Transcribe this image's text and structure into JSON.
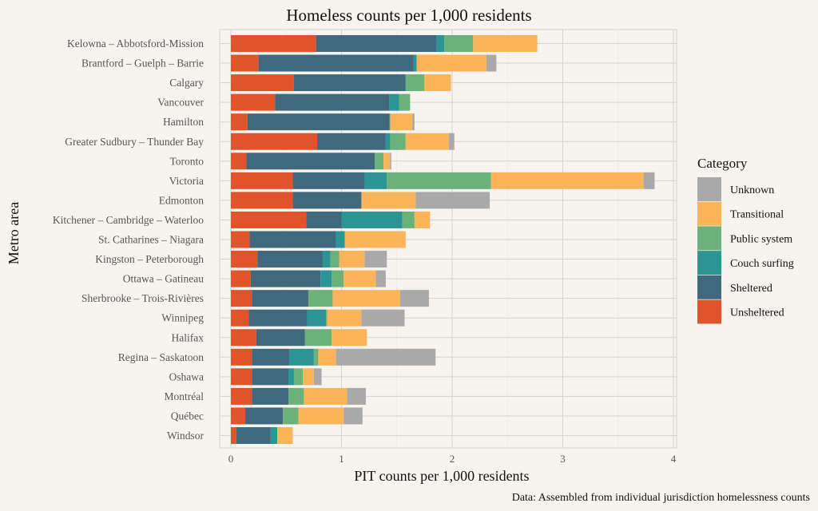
{
  "chart_data": {
    "type": "bar",
    "orientation": "horizontal",
    "stacked": true,
    "title": "Homeless counts per 1,000 residents",
    "xlabel": "PIT counts per 1,000 residents",
    "ylabel": "Metro area",
    "caption": "Data: Assembled from individual jurisdiction homelessness counts",
    "xlim": [
      0,
      4
    ],
    "xticks": [
      0,
      1,
      2,
      3,
      4
    ],
    "grid": true,
    "legend_position": "right",
    "legend_title": "Category",
    "categories": [
      "Kelowna – Abbotsford-Mission",
      "Brantford – Guelph – Barrie",
      "Calgary",
      "Vancouver",
      "Hamilton",
      "Greater Sudbury – Thunder Bay",
      "Toronto",
      "Victoria",
      "Edmonton",
      "Kitchener – Cambridge – Waterloo",
      "St. Catharines – Niagara",
      "Kingston – Peterborough",
      "Ottawa – Gatineau",
      "Sherbrooke – Trois-Rivières",
      "Winnipeg",
      "Halifax",
      "Regina – Saskatoon",
      "Oshawa",
      "Montréal",
      "Québec",
      "Windsor"
    ],
    "series": [
      {
        "name": "Unsheltered",
        "color": "#e0532b",
        "values": [
          0.77,
          0.25,
          0.57,
          0.4,
          0.15,
          0.78,
          0.14,
          0.56,
          0.56,
          0.68,
          0.17,
          0.24,
          0.18,
          0.19,
          0.16,
          0.23,
          0.19,
          0.19,
          0.19,
          0.13,
          0.05
        ]
      },
      {
        "name": "Sheltered",
        "color": "#41697e",
        "values": [
          1.09,
          1.4,
          1.01,
          1.03,
          1.28,
          0.62,
          1.16,
          0.65,
          0.62,
          0.32,
          0.78,
          0.59,
          0.63,
          0.51,
          0.53,
          0.44,
          0.34,
          0.33,
          0.33,
          0.34,
          0.31
        ]
      },
      {
        "name": "Couch surfing",
        "color": "#2b9593",
        "values": [
          0.07,
          0.03,
          0.0,
          0.09,
          0.01,
          0.04,
          0.0,
          0.2,
          0.0,
          0.55,
          0.08,
          0.07,
          0.1,
          0.0,
          0.17,
          0.0,
          0.22,
          0.05,
          0.0,
          0.0,
          0.06
        ]
      },
      {
        "name": "Public system",
        "color": "#6ab27a",
        "values": [
          0.26,
          0.0,
          0.17,
          0.1,
          0.0,
          0.14,
          0.08,
          0.94,
          0.0,
          0.11,
          0.0,
          0.08,
          0.11,
          0.22,
          0.01,
          0.24,
          0.04,
          0.08,
          0.14,
          0.14,
          0.0
        ]
      },
      {
        "name": "Transitional",
        "color": "#fbb45a",
        "values": [
          0.58,
          0.63,
          0.24,
          0.0,
          0.2,
          0.39,
          0.06,
          1.38,
          0.49,
          0.14,
          0.55,
          0.23,
          0.29,
          0.61,
          0.31,
          0.32,
          0.16,
          0.1,
          0.39,
          0.41,
          0.14
        ]
      },
      {
        "name": "Unknown",
        "color": "#a9a9a9",
        "values": [
          0.0,
          0.09,
          0.0,
          0.0,
          0.02,
          0.05,
          0.01,
          0.1,
          0.67,
          0.0,
          0.0,
          0.2,
          0.09,
          0.26,
          0.39,
          0.0,
          0.9,
          0.07,
          0.17,
          0.17,
          0.0
        ]
      }
    ],
    "legend_order": [
      "Unknown",
      "Transitional",
      "Public system",
      "Couch surfing",
      "Sheltered",
      "Unsheltered"
    ]
  }
}
